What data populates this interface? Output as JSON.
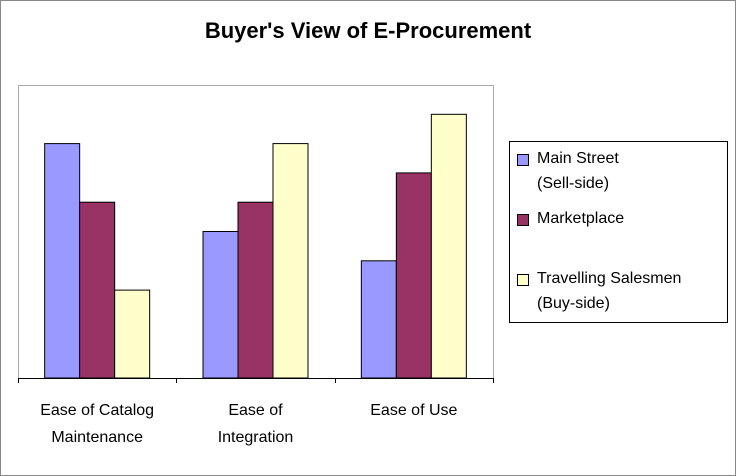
{
  "chart_data": {
    "type": "bar",
    "title": "Buyer's View of E-Procurement",
    "categories": [
      "Ease of Catalog\nMaintenance",
      "Ease of\nIntegration",
      "Ease of Use"
    ],
    "series": [
      {
        "name": "Main Street\n(Sell-side)",
        "color": "#9999ff",
        "values": [
          8,
          5,
          4
        ]
      },
      {
        "name": "Marketplace",
        "color": "#993366",
        "values": [
          6,
          6,
          7
        ]
      },
      {
        "name": "Travelling Salesmen\n(Buy-side)",
        "color": "#ffffcc",
        "values": [
          3,
          8,
          9
        ]
      }
    ],
    "ylim": [
      0,
      10
    ],
    "legend": "right"
  }
}
